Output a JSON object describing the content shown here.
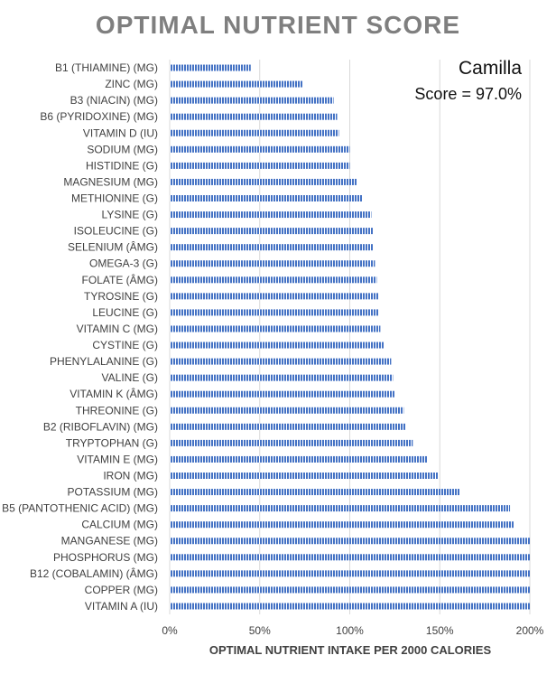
{
  "chart_data": {
    "type": "bar",
    "orientation": "horizontal",
    "title": "OPTIMAL NUTRIENT SCORE",
    "xlabel": "OPTIMAL NUTRIENT INTAKE PER 2000 CALORIES",
    "ylabel": "",
    "xlim": [
      0,
      200
    ],
    "xticks": [
      "0%",
      "50%",
      "100%",
      "150%",
      "200%"
    ],
    "grid": true,
    "annotation": {
      "name": "Camilla",
      "score": "Score = 97.0%"
    },
    "bar_color": "#4472c4",
    "categories": [
      "B1 (THIAMINE) (MG)",
      "ZINC (MG)",
      "B3 (NIACIN) (MG)",
      "B6 (PYRIDOXINE) (MG)",
      "VITAMIN D (IU)",
      "SODIUM (MG)",
      "HISTIDINE (G)",
      "MAGNESIUM (MG)",
      "METHIONINE (G)",
      "LYSINE (G)",
      "ISOLEUCINE (G)",
      "SELENIUM (ÂMG)",
      "OMEGA-3 (G)",
      "FOLATE (ÂMG)",
      "TYROSINE (G)",
      "LEUCINE (G)",
      "VITAMIN C (MG)",
      "CYSTINE (G)",
      "PHENYLALANINE (G)",
      "VALINE (G)",
      "VITAMIN K (ÂMG)",
      "THREONINE (G)",
      "B2 (RIBOFLAVIN) (MG)",
      "TRYPTOPHAN (G)",
      "VITAMIN E (MG)",
      "IRON (MG)",
      "POTASSIUM (MG)",
      "B5 (PANTOTHENIC ACID) (MG)",
      "CALCIUM (MG)",
      "MANGANESE (MG)",
      "PHOSPHORUS (MG)",
      "B12 (COBALAMIN) (ÂMG)",
      "COPPER (MG)",
      "VITAMIN A (IU)"
    ],
    "values": [
      45,
      74,
      91,
      93,
      94,
      100,
      100,
      104,
      107,
      112,
      113,
      113,
      114,
      115,
      116,
      116,
      117,
      119,
      123,
      124,
      125,
      130,
      131,
      135,
      143,
      149,
      161,
      189,
      191,
      200,
      200,
      200,
      200,
      200
    ]
  }
}
